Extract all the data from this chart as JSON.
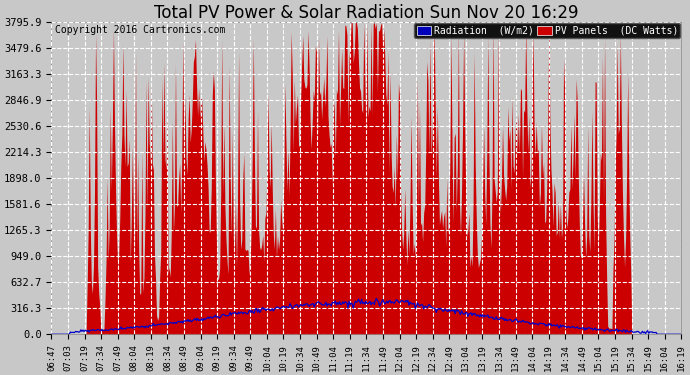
{
  "title": "Total PV Power & Solar Radiation Sun Nov 20 16:29",
  "copyright_text": "Copyright 2016 Cartronics.com",
  "background_color": "#c8c8c8",
  "plot_bg_color": "#c8c8c8",
  "y_ticks": [
    0.0,
    316.3,
    632.7,
    949.0,
    1265.3,
    1581.6,
    1898.0,
    2214.3,
    2530.6,
    2846.9,
    3163.3,
    3479.6,
    3795.9
  ],
  "x_tick_labels": [
    "06:47",
    "07:03",
    "07:19",
    "07:34",
    "07:49",
    "08:04",
    "08:19",
    "08:34",
    "08:49",
    "09:04",
    "09:19",
    "09:34",
    "09:49",
    "10:04",
    "10:19",
    "10:34",
    "10:49",
    "11:04",
    "11:19",
    "11:34",
    "11:49",
    "12:04",
    "12:19",
    "12:34",
    "12:49",
    "13:04",
    "13:19",
    "13:34",
    "13:49",
    "14:04",
    "14:19",
    "14:34",
    "14:49",
    "15:04",
    "15:19",
    "15:34",
    "15:49",
    "16:04",
    "16:19"
  ],
  "legend_radiation_label": "Radiation  (W/m2)",
  "legend_pv_label": "PV Panels  (DC Watts)",
  "legend_radiation_bg": "#0000bb",
  "legend_pv_bg": "#cc0000",
  "pv_fill_color": "#cc0000",
  "radiation_line_color": "#0000cc",
  "grid_color": "#ffffff",
  "title_color": "#000000",
  "title_fontsize": 12,
  "copyright_fontsize": 7,
  "tick_label_fontsize": 6.5,
  "ytick_fontsize": 7.5,
  "ylim": [
    0,
    3795.9
  ],
  "num_points": 600
}
